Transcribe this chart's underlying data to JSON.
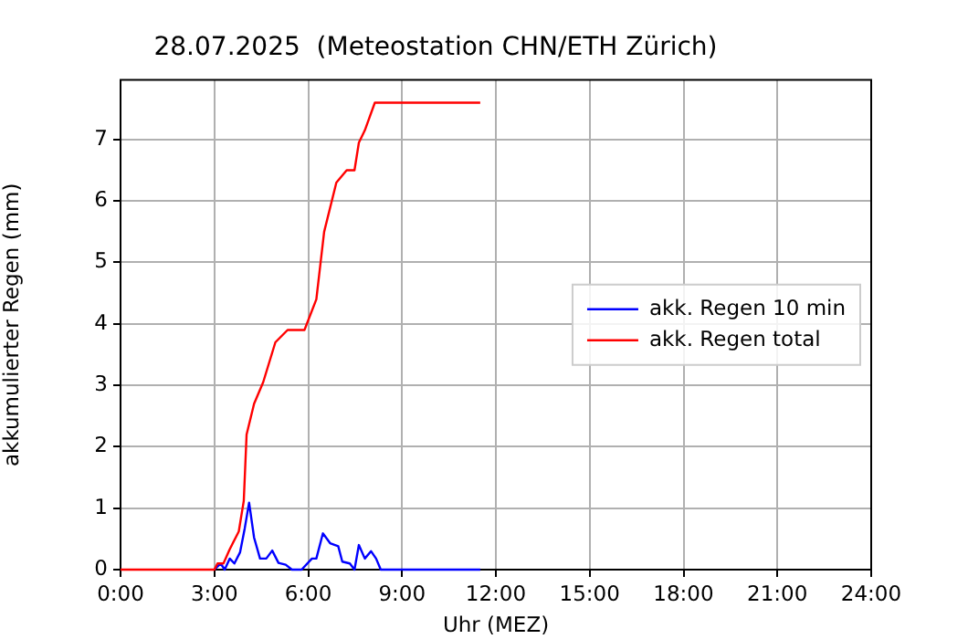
{
  "chart_data": {
    "type": "line",
    "title": "28.07.2025  (Meteostation CHN/ETH Zürich)",
    "xlabel": "Uhr (MEZ)",
    "ylabel": "akkumulierter Regen (mm)",
    "series": [
      {
        "name": "akk. Regen 10 min",
        "color": "#0000ff",
        "x": [
          3,
          3.2,
          3.33,
          3.49,
          3.64,
          3.82,
          3.97,
          4.11,
          4.27,
          4.46,
          4.66,
          4.85,
          5.05,
          5.28,
          5.48,
          5.79,
          6.12,
          6.26,
          6.47,
          6.7,
          6.96,
          7.09,
          7.33,
          7.48,
          7.62,
          7.81,
          8.01,
          8.17,
          8.32,
          11.5
        ],
        "values": [
          0,
          0.1,
          0,
          0.18,
          0.1,
          0.28,
          0.67,
          1.09,
          0.52,
          0.18,
          0.18,
          0.31,
          0.11,
          0.08,
          0,
          0,
          0.18,
          0.18,
          0.59,
          0.43,
          0.38,
          0.13,
          0.1,
          0,
          0.4,
          0.18,
          0.3,
          0.18,
          0,
          0
        ]
      },
      {
        "name": "akk. Regen total",
        "color": "#ff0000",
        "x": [
          0,
          3,
          3.1,
          3.29,
          3.49,
          3.78,
          3.94,
          4.03,
          4.27,
          4.56,
          4.95,
          5.34,
          5.88,
          6.26,
          6.51,
          6.9,
          7.23,
          7.48,
          7.62,
          7.81,
          8.13,
          11.5
        ],
        "values": [
          0,
          0,
          0.1,
          0.1,
          0.33,
          0.62,
          1.12,
          2.2,
          2.7,
          3.05,
          3.7,
          3.9,
          3.9,
          4.4,
          5.5,
          6.3,
          6.5,
          6.5,
          6.95,
          7.15,
          7.6,
          7.6
        ]
      }
    ],
    "xlim": [
      0,
      24
    ],
    "xticks": [
      {
        "value": 0,
        "label": "0:00"
      },
      {
        "value": 3,
        "label": "3:00"
      },
      {
        "value": 6,
        "label": "6:00"
      },
      {
        "value": 9,
        "label": "9:00"
      },
      {
        "value": 12,
        "label": "12:00"
      },
      {
        "value": 15,
        "label": "15:00"
      },
      {
        "value": 18,
        "label": "18:00"
      },
      {
        "value": 21,
        "label": "21:00"
      },
      {
        "value": 24,
        "label": "24:00"
      }
    ],
    "ylim": [
      0,
      7.97
    ],
    "yticks": [
      0,
      1,
      2,
      3,
      4,
      5,
      6,
      7
    ],
    "grid": true,
    "legend": "center right",
    "marker": "none",
    "line_style": "solid"
  }
}
